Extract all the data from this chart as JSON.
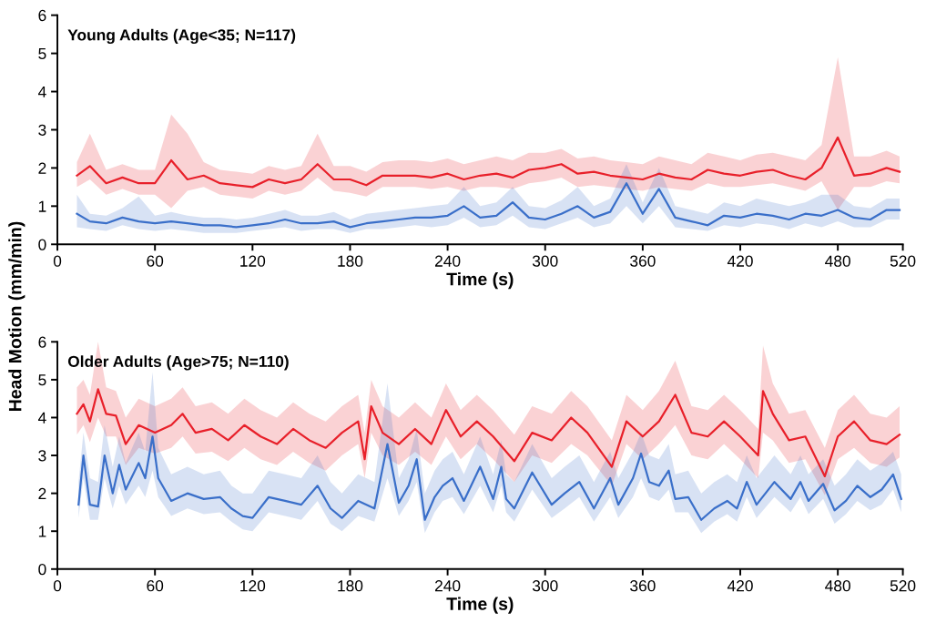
{
  "chart_data": [
    {
      "type": "line",
      "title": "Young Adults (Age<35; N=117)",
      "xlabel": "Time (s)",
      "ylabel": "Head Motion (mm/min)",
      "xlim": [
        0,
        520
      ],
      "xticks": [
        0,
        60,
        120,
        180,
        240,
        300,
        360,
        420,
        480,
        520
      ],
      "ylim": [
        0,
        6
      ],
      "yticks": [
        0,
        1,
        2,
        3,
        4,
        5,
        6
      ],
      "grid": false,
      "legend": false,
      "marker": "none",
      "line_style": "solid",
      "x": [
        12,
        20,
        30,
        40,
        50,
        60,
        70,
        80,
        90,
        100,
        110,
        120,
        130,
        140,
        150,
        160,
        170,
        180,
        190,
        200,
        210,
        220,
        230,
        240,
        250,
        260,
        270,
        280,
        290,
        300,
        310,
        320,
        330,
        340,
        350,
        360,
        370,
        380,
        390,
        400,
        410,
        420,
        430,
        440,
        450,
        460,
        470,
        480,
        490,
        500,
        510,
        518
      ],
      "series": [
        {
          "color": "#e8202a",
          "values": [
            1.8,
            2.05,
            1.6,
            1.75,
            1.6,
            1.6,
            2.2,
            1.7,
            1.8,
            1.6,
            1.55,
            1.5,
            1.7,
            1.6,
            1.7,
            2.1,
            1.7,
            1.7,
            1.55,
            1.8,
            1.8,
            1.8,
            1.75,
            1.85,
            1.7,
            1.8,
            1.85,
            1.75,
            1.95,
            2.0,
            2.1,
            1.85,
            1.9,
            1.8,
            1.75,
            1.7,
            1.85,
            1.75,
            1.7,
            1.95,
            1.85,
            1.8,
            1.9,
            1.95,
            1.8,
            1.7,
            2.0,
            2.8,
            1.8,
            1.85,
            2.0,
            1.9
          ],
          "lower": [
            1.5,
            1.7,
            1.3,
            1.45,
            1.3,
            1.3,
            0.95,
            1.4,
            1.5,
            1.3,
            1.25,
            1.2,
            1.4,
            1.3,
            1.4,
            1.75,
            1.4,
            1.35,
            1.25,
            1.5,
            1.5,
            1.5,
            1.45,
            1.5,
            1.4,
            1.5,
            1.5,
            1.45,
            1.6,
            1.65,
            1.75,
            1.5,
            1.55,
            1.5,
            1.45,
            1.4,
            1.5,
            1.45,
            1.4,
            1.6,
            1.5,
            1.5,
            1.55,
            1.6,
            1.5,
            1.4,
            1.65,
            0.9,
            1.5,
            1.5,
            1.65,
            1.6
          ],
          "upper": [
            2.15,
            2.9,
            1.95,
            2.1,
            1.95,
            1.95,
            3.4,
            2.9,
            2.15,
            1.95,
            1.9,
            1.85,
            2.05,
            1.95,
            2.05,
            2.9,
            2.05,
            2.05,
            1.9,
            2.15,
            2.2,
            2.2,
            2.15,
            2.25,
            2.1,
            2.2,
            2.3,
            2.2,
            2.4,
            2.4,
            2.5,
            2.25,
            2.3,
            2.2,
            2.15,
            2.1,
            2.3,
            2.2,
            2.1,
            2.4,
            2.3,
            2.2,
            2.35,
            2.4,
            2.3,
            2.2,
            2.6,
            4.9,
            2.3,
            2.3,
            2.45,
            2.3
          ]
        },
        {
          "color": "#3a6fc9",
          "values": [
            0.8,
            0.6,
            0.55,
            0.7,
            0.6,
            0.55,
            0.6,
            0.55,
            0.5,
            0.5,
            0.45,
            0.5,
            0.55,
            0.65,
            0.55,
            0.55,
            0.6,
            0.45,
            0.55,
            0.6,
            0.65,
            0.7,
            0.7,
            0.75,
            1.0,
            0.7,
            0.75,
            1.1,
            0.7,
            0.65,
            0.8,
            1.0,
            0.7,
            0.85,
            1.6,
            0.8,
            1.45,
            0.7,
            0.6,
            0.5,
            0.75,
            0.7,
            0.8,
            0.75,
            0.65,
            0.8,
            0.75,
            0.9,
            0.7,
            0.65,
            0.9,
            0.9
          ],
          "lower": [
            0.45,
            0.4,
            0.35,
            0.5,
            0.4,
            0.35,
            0.4,
            0.35,
            0.3,
            0.3,
            0.3,
            0.35,
            0.4,
            0.45,
            0.35,
            0.4,
            0.4,
            0.3,
            0.4,
            0.4,
            0.45,
            0.5,
            0.45,
            0.5,
            0.7,
            0.45,
            0.5,
            0.75,
            0.45,
            0.4,
            0.55,
            0.7,
            0.45,
            0.55,
            1.0,
            0.55,
            1.0,
            0.45,
            0.4,
            0.35,
            0.5,
            0.45,
            0.55,
            0.5,
            0.4,
            0.55,
            0.45,
            0.6,
            0.45,
            0.45,
            0.65,
            0.65
          ],
          "upper": [
            1.3,
            0.8,
            0.75,
            0.95,
            1.25,
            0.75,
            0.85,
            0.75,
            0.7,
            0.7,
            0.65,
            0.7,
            0.8,
            0.9,
            0.75,
            0.75,
            0.85,
            0.65,
            0.8,
            0.85,
            0.9,
            0.95,
            1.0,
            1.05,
            1.5,
            1.0,
            1.1,
            1.5,
            1.0,
            0.95,
            1.15,
            1.5,
            1.0,
            1.2,
            2.1,
            1.1,
            2.0,
            1.0,
            0.9,
            0.8,
            1.1,
            1.0,
            1.2,
            1.1,
            1.0,
            1.1,
            1.3,
            1.3,
            1.0,
            0.95,
            1.2,
            1.2
          ]
        }
      ]
    },
    {
      "type": "line",
      "title": "Older Adults (Age>75; N=110)",
      "xlabel": "Time (s)",
      "xlim": [
        0,
        520
      ],
      "xticks": [
        0,
        60,
        120,
        180,
        240,
        300,
        360,
        420,
        480,
        520
      ],
      "ylim": [
        0,
        6
      ],
      "yticks": [
        0,
        1,
        2,
        3,
        4,
        5,
        6
      ],
      "grid": false,
      "legend": false,
      "marker": "none",
      "line_style": "solid",
      "series": [
        {
          "color": "#e8202a",
          "x": [
            12,
            16,
            20,
            25,
            30,
            36,
            42,
            50,
            60,
            70,
            77,
            85,
            95,
            105,
            115,
            125,
            135,
            145,
            155,
            165,
            175,
            185,
            189,
            193,
            200,
            210,
            220,
            230,
            239,
            248,
            258,
            268,
            281,
            292,
            304,
            316,
            326,
            341,
            350,
            360,
            370,
            380,
            390,
            400,
            410,
            420,
            431,
            434,
            440,
            450,
            460,
            472,
            480,
            490,
            500,
            510,
            518
          ],
          "values": [
            4.1,
            4.35,
            3.9,
            4.75,
            4.1,
            4.05,
            3.3,
            3.8,
            3.6,
            3.8,
            4.1,
            3.6,
            3.7,
            3.4,
            3.8,
            3.5,
            3.3,
            3.7,
            3.4,
            3.2,
            3.6,
            3.9,
            2.9,
            4.3,
            3.6,
            3.3,
            3.7,
            3.3,
            4.2,
            3.5,
            3.9,
            3.5,
            2.85,
            3.6,
            3.4,
            4.0,
            3.6,
            2.7,
            3.9,
            3.5,
            3.9,
            4.6,
            3.6,
            3.5,
            3.9,
            3.5,
            3.0,
            4.7,
            4.1,
            3.4,
            3.5,
            2.45,
            3.5,
            3.9,
            3.4,
            3.3,
            3.55
          ],
          "lower": [
            3.55,
            3.8,
            3.35,
            4.0,
            3.5,
            3.5,
            2.75,
            3.2,
            3.05,
            3.2,
            3.5,
            3.05,
            3.1,
            2.85,
            3.2,
            2.9,
            2.75,
            3.1,
            2.8,
            2.6,
            3.0,
            3.3,
            2.4,
            3.6,
            3.0,
            2.75,
            3.1,
            2.75,
            3.5,
            2.9,
            3.3,
            2.9,
            2.3,
            3.0,
            2.8,
            3.3,
            3.0,
            2.2,
            3.3,
            2.9,
            3.3,
            3.8,
            3.0,
            2.9,
            3.3,
            2.9,
            2.4,
            3.6,
            3.4,
            2.8,
            2.9,
            1.95,
            2.9,
            3.2,
            2.8,
            2.7,
            2.95
          ],
          "upper": [
            4.8,
            5.0,
            4.6,
            6.0,
            4.8,
            4.7,
            4.0,
            4.5,
            4.3,
            4.5,
            4.8,
            4.3,
            4.4,
            4.1,
            4.5,
            4.2,
            4.0,
            4.4,
            4.1,
            3.9,
            4.3,
            4.6,
            3.6,
            5.0,
            4.3,
            4.0,
            4.4,
            4.0,
            4.9,
            4.2,
            4.6,
            4.2,
            3.55,
            4.3,
            4.1,
            4.7,
            4.3,
            3.4,
            4.6,
            4.2,
            4.7,
            5.5,
            4.3,
            4.2,
            4.6,
            4.2,
            3.7,
            5.9,
            4.9,
            4.1,
            4.2,
            3.2,
            4.2,
            4.6,
            4.1,
            4.0,
            4.3
          ]
        },
        {
          "color": "#3a6fc9",
          "x": [
            13,
            16,
            20,
            25,
            29,
            34,
            38,
            42,
            50,
            54,
            58.5,
            62,
            70,
            80,
            90,
            100,
            107,
            114,
            120,
            130,
            140,
            150,
            160,
            168,
            175,
            185,
            195,
            203,
            210,
            216,
            221,
            226,
            232,
            237,
            243,
            250,
            260,
            268,
            273,
            276,
            281,
            292,
            304,
            312,
            321,
            330,
            340,
            345,
            354,
            359,
            364,
            370,
            376,
            380,
            388,
            396,
            404,
            412,
            418,
            424,
            430,
            441,
            451,
            457,
            462,
            471,
            478,
            485,
            492,
            500,
            507,
            514,
            519
          ],
          "values": [
            1.7,
            3.0,
            1.7,
            1.65,
            3.0,
            2.0,
            2.75,
            2.1,
            2.8,
            2.4,
            3.5,
            2.4,
            1.8,
            2.0,
            1.85,
            1.9,
            1.6,
            1.4,
            1.35,
            1.9,
            1.8,
            1.7,
            2.2,
            1.6,
            1.35,
            1.8,
            1.6,
            3.3,
            1.75,
            2.2,
            2.9,
            1.3,
            1.9,
            2.2,
            2.4,
            1.8,
            2.7,
            1.85,
            2.7,
            1.85,
            1.6,
            2.55,
            1.7,
            2.0,
            2.3,
            1.6,
            2.4,
            1.7,
            2.4,
            3.05,
            2.3,
            2.2,
            2.6,
            1.85,
            1.9,
            1.3,
            1.6,
            1.8,
            1.6,
            2.3,
            1.7,
            2.3,
            1.85,
            2.3,
            1.8,
            2.25,
            1.55,
            1.8,
            2.2,
            1.9,
            2.1,
            2.5,
            1.85
          ],
          "lower": [
            1.35,
            2.4,
            1.3,
            1.3,
            2.4,
            1.6,
            2.2,
            1.7,
            2.2,
            1.9,
            2.6,
            1.9,
            1.4,
            1.6,
            1.45,
            1.5,
            1.25,
            1.05,
            1.0,
            1.5,
            1.4,
            1.3,
            1.8,
            1.2,
            1.0,
            1.4,
            1.25,
            2.4,
            1.4,
            1.8,
            2.3,
            0.95,
            1.5,
            1.8,
            1.9,
            1.45,
            2.2,
            1.5,
            2.2,
            1.5,
            1.25,
            2.1,
            1.35,
            1.6,
            1.9,
            1.25,
            1.9,
            1.35,
            1.9,
            2.4,
            1.9,
            1.8,
            2.1,
            1.5,
            1.5,
            0.95,
            1.25,
            1.45,
            1.25,
            1.9,
            1.35,
            1.9,
            1.5,
            1.9,
            1.45,
            1.85,
            1.2,
            1.45,
            1.8,
            1.55,
            1.7,
            2.1,
            1.5
          ],
          "upper": [
            2.3,
            3.6,
            2.4,
            2.3,
            3.8,
            2.7,
            3.5,
            2.8,
            3.6,
            3.1,
            5.2,
            3.2,
            2.5,
            2.7,
            2.5,
            2.6,
            2.2,
            2.0,
            2.0,
            2.6,
            2.5,
            2.4,
            3.0,
            2.3,
            2.0,
            2.5,
            2.3,
            4.9,
            2.4,
            2.9,
            3.7,
            2.0,
            2.6,
            2.9,
            3.1,
            2.5,
            3.5,
            2.5,
            3.4,
            2.5,
            2.3,
            3.3,
            2.4,
            2.7,
            3.0,
            2.3,
            3.1,
            2.4,
            3.1,
            3.6,
            3.0,
            2.9,
            3.3,
            2.5,
            2.6,
            2.0,
            2.3,
            2.5,
            2.3,
            3.0,
            2.4,
            3.0,
            2.5,
            3.0,
            2.5,
            2.9,
            2.2,
            2.5,
            2.9,
            2.6,
            2.8,
            3.1,
            2.5
          ]
        }
      ]
    }
  ]
}
